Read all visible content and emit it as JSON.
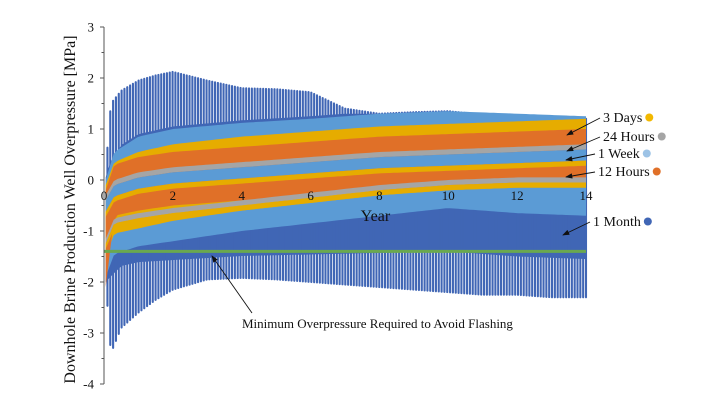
{
  "chart_data": {
    "type": "area",
    "title": "",
    "xlabel": "Year",
    "ylabel": "Downhole Brine Production Well Overpressure [MPa]",
    "xlim": [
      0,
      14
    ],
    "ylim": [
      -4,
      3
    ],
    "xticks": [
      0,
      2,
      4,
      6,
      8,
      10,
      12,
      14
    ],
    "yticks": [
      -4,
      -3,
      -2,
      -1,
      0,
      1,
      2,
      3
    ],
    "grid": false,
    "legend_placement": "right",
    "description": "Oscillating overpressure envelopes (max/min) for five injection/production cycle periods",
    "series": [
      {
        "name": "1 Month",
        "color": "#4066b5",
        "style": "oscillating",
        "x": [
          0.05,
          0.2,
          0.5,
          1,
          1.5,
          2,
          3,
          4,
          5,
          6,
          7,
          8,
          9,
          10,
          11,
          12,
          13,
          14
        ],
        "upper": [
          0.2,
          1.5,
          1.75,
          1.95,
          2.05,
          2.12,
          1.95,
          1.8,
          1.78,
          1.72,
          1.4,
          1.3,
          1.33,
          1.35,
          1.28,
          1.22,
          1.2,
          1.2
        ],
        "lower": [
          -2.0,
          -3.4,
          -2.9,
          -2.6,
          -2.35,
          -2.15,
          -1.95,
          -1.92,
          -1.95,
          -2.0,
          -2.05,
          -2.1,
          -2.15,
          -2.2,
          -2.25,
          -2.25,
          -2.3,
          -2.3
        ]
      },
      {
        "name": "1 Week",
        "color": "#5b9bd5",
        "style": "band",
        "x": [
          0.05,
          0.3,
          1,
          2,
          4,
          6,
          8,
          10,
          12,
          14
        ],
        "upper": [
          0.0,
          0.55,
          0.85,
          1.0,
          1.12,
          1.2,
          1.3,
          1.35,
          1.3,
          1.25
        ],
        "lower": [
          -1.9,
          -1.45,
          -1.3,
          -1.2,
          -1.0,
          -0.85,
          -0.7,
          -0.55,
          -0.65,
          -0.7
        ]
      },
      {
        "name": "3 Days",
        "color": "#e6ac00",
        "style": "band",
        "x": [
          0.05,
          0.3,
          1,
          2,
          4,
          6,
          8,
          10,
          12,
          14
        ],
        "upper": [
          -0.1,
          0.35,
          0.55,
          0.7,
          0.85,
          0.95,
          1.05,
          1.1,
          1.15,
          1.2
        ],
        "lower": [
          -1.5,
          -1.05,
          -0.95,
          -0.8,
          -0.6,
          -0.45,
          -0.3,
          -0.2,
          -0.15,
          -0.1
        ]
      },
      {
        "name": "24 Hours",
        "color": "#a5a5a5",
        "style": "band",
        "x": [
          0.05,
          0.3,
          1,
          2,
          4,
          6,
          8,
          10,
          12,
          14
        ],
        "upper": [
          -0.3,
          0.0,
          0.15,
          0.25,
          0.35,
          0.45,
          0.55,
          0.6,
          0.65,
          0.7
        ],
        "lower": [
          -1.2,
          -0.8,
          -0.7,
          -0.6,
          -0.45,
          -0.3,
          -0.15,
          -0.05,
          0.0,
          0.0
        ]
      },
      {
        "name": "12 Hours",
        "color": "#e07028",
        "style": "band",
        "x": [
          0.05,
          0.3,
          1,
          2,
          4,
          6,
          8,
          10,
          12,
          14
        ],
        "upper": [
          -0.2,
          0.3,
          0.45,
          0.55,
          0.65,
          0.75,
          0.85,
          0.9,
          0.95,
          1.0
        ],
        "lower": [
          -2.1,
          -0.7,
          -0.6,
          -0.5,
          -0.4,
          -0.3,
          -0.2,
          -0.1,
          -0.05,
          0.0
        ]
      }
    ],
    "reference_line": {
      "name": "Minimum Overpressure Required to Avoid Flashing",
      "y": -1.4,
      "x_range": [
        0,
        14
      ],
      "color": "#6aa84f"
    },
    "annotations": [
      {
        "text": "3 Days",
        "target_series": "3 Days",
        "target": [
          14,
          1.1
        ],
        "marker_color": "#f2b800"
      },
      {
        "text": "24 Hours",
        "target_series": "24 Hours",
        "target": [
          14,
          0.55
        ],
        "marker_color": "#a5a5a5"
      },
      {
        "text": "1 Week",
        "target_series": "1 Week",
        "target": [
          14,
          0.4
        ],
        "marker_color": "#9dc3e6"
      },
      {
        "text": "12 Hours",
        "target_series": "12 Hours",
        "target": [
          14,
          0.05
        ],
        "marker_color": "#e07028"
      },
      {
        "text": "1 Month",
        "target_series": "1 Month",
        "target": [
          14,
          -1.0
        ],
        "marker_color": "#4066b5"
      },
      {
        "text": "Minimum Overpressure Required to Avoid Flashing",
        "target": [
          3.0,
          -1.4
        ]
      }
    ]
  }
}
